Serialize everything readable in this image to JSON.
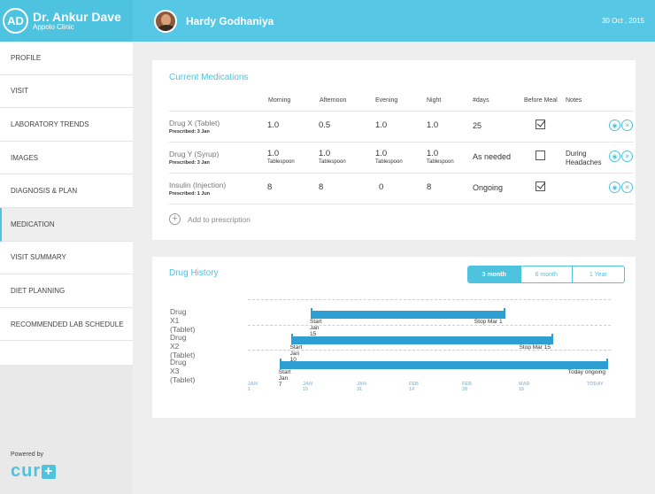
{
  "brand": {
    "initials": "AD",
    "doctor": "Dr. Ankur Dave",
    "clinic": "Appolo Clinic"
  },
  "header": {
    "patient": "Hardy Godhaniya",
    "date": "30 Oct , 2015"
  },
  "menu": [
    {
      "label": "PROFILE"
    },
    {
      "label": "VISIT"
    },
    {
      "label": "LABORATORY TRENDS"
    },
    {
      "label": "IMAGES"
    },
    {
      "label": "DIAGNOSIS & PLAN"
    },
    {
      "label": "MEDICATION"
    },
    {
      "label": "VISIT SUMMARY"
    },
    {
      "label": "DIET PLANNING"
    },
    {
      "label": "RECOMMENDED LAB SCHEDULE"
    }
  ],
  "powered": {
    "label": "Powered by",
    "logo": "cur",
    "logo_plus": "+"
  },
  "medications": {
    "title": "Current Medications",
    "columns": [
      "Morning",
      "Afternoon",
      "Evening",
      "Night",
      "#days",
      "Before Meal",
      "Notes"
    ],
    "rows": [
      {
        "name": "Drug X (Tablet)",
        "prescribed": "Prescribed: 3 Jan",
        "morning": "1.0",
        "afternoon": "0.5",
        "evening": "1.0",
        "night": "1.0",
        "unit": "",
        "days": "25",
        "before_meal": true,
        "notes": ""
      },
      {
        "name": "Drug Y (Syrup)",
        "prescribed": "Prescribed: 3 Jan",
        "morning": "1.0",
        "afternoon": "1.0",
        "evening": "1.0",
        "night": "1.0",
        "unit": "Tablespoon",
        "days": "As needed",
        "before_meal": false,
        "notes": "During Headaches"
      },
      {
        "name": "Insulin (Injection)",
        "prescribed": "Prescribed: 1 Jun",
        "morning": "8",
        "afternoon": "8",
        "evening": "0",
        "night": "8",
        "unit": "",
        "days": "Ongoing",
        "before_meal": true,
        "notes": ""
      }
    ],
    "action_icons": [
      "wifi-icon",
      "close-icon"
    ],
    "add_label": "Add to prescription"
  },
  "history": {
    "title": "Drug History",
    "ranges": [
      {
        "label": "3 month",
        "active": true
      },
      {
        "label": "6 month",
        "active": false
      },
      {
        "label": "1 Year",
        "active": false
      }
    ],
    "ticks": [
      "JAN 1",
      "JAN 15",
      "JAN 31",
      "FEB 14",
      "FEB 28",
      "MAR 15",
      "TODAY"
    ],
    "drugs": [
      {
        "name": "Drug X1 (Tablet)",
        "start": "Start Jan 15",
        "stop": "Stop Mar 1",
        "from": 1,
        "to": 4.4
      },
      {
        "name": "Drug X2 (Tablet)",
        "start": "Start Jan 10",
        "stop": "Stop Mar 15",
        "from": 0.65,
        "to": 5.25
      },
      {
        "name": "Drug X3 (Tablet)",
        "start": "Start Jan 7",
        "stop": "Today ongoing",
        "from": 0.45,
        "to": 6.6
      }
    ]
  }
}
